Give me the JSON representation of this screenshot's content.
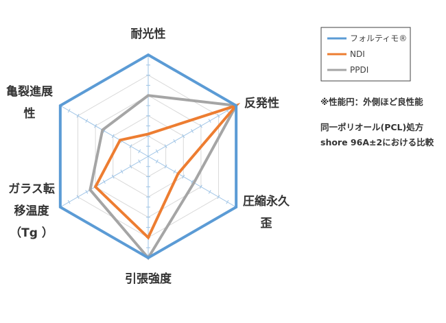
{
  "chart_data": {
    "type": "radar",
    "axes": [
      "耐光性",
      "反発性",
      "圧縮永久歪",
      "引張強度",
      "ガラス転移温度(Tg)",
      "亀裂進展性"
    ],
    "axis_label_lines": [
      [
        "耐光性"
      ],
      [
        "反発性"
      ],
      [
        "圧縮永久",
        "歪"
      ],
      [
        "引張強度"
      ],
      [
        "ガラス転",
        "移温度",
        "（Tg ）"
      ],
      [
        "亀裂進展",
        "性"
      ]
    ],
    "scale": {
      "min": 0,
      "max": 5,
      "rings": 5,
      "ticks_per_ring": 2
    },
    "series": [
      {
        "name": "フォルティモ®",
        "values": [
          5,
          5,
          5,
          5,
          5,
          5
        ],
        "color": "#5b9bd5"
      },
      {
        "name": "NDI",
        "values": [
          1.1,
          5,
          1.7,
          4.0,
          3.0,
          1.6
        ],
        "color": "#ed7d31"
      },
      {
        "name": "PPDI",
        "values": [
          3.0,
          5,
          2.6,
          5,
          3.3,
          2.6
        ],
        "color": "#a5a5a5"
      }
    ],
    "legend_position": "top-right",
    "grid": true
  },
  "notes": [
    "※性能円：外側ほど良性能",
    "同一ポリオール(PCL)処方",
    "shore 96A±2における比較"
  ]
}
